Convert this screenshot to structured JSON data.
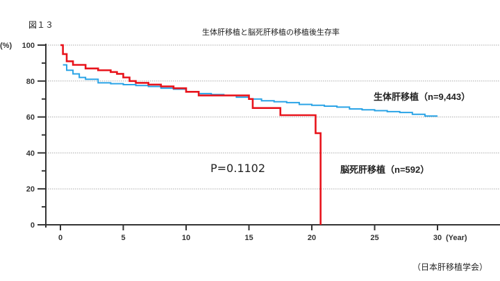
{
  "figure_label": "図１３",
  "title": "生体肝移植と脳死肝移植の移植後生存率",
  "source": "（日本肝移植学会）",
  "p_value_label": "P=0.1102",
  "y_unit_label": "(%)",
  "x_unit_label": "(Year)",
  "colors": {
    "living": "#29a3e6",
    "deceased": "#e8141c",
    "axis": "#333333",
    "grid": "#aaaaaa"
  },
  "chart_data": {
    "type": "line",
    "title": "生体肝移植と脳死肝移植の移植後生存率",
    "xlabel": "(Year)",
    "ylabel": "(%)",
    "xlim": [
      0,
      30
    ],
    "ylim": [
      0,
      100
    ],
    "x_ticks": [
      0,
      5,
      10,
      15,
      20,
      25,
      30
    ],
    "y_ticks": [
      0,
      20,
      40,
      60,
      80,
      100
    ],
    "grid": "horizontal dotted at 20,40,60,80,100",
    "annotations": [
      "P=0.1102"
    ],
    "series": [
      {
        "name": "生体肝移植（n=9,443）",
        "label": "生体肝移植",
        "n_label": "（n=9,443）",
        "color": "#29a3e6",
        "step": true,
        "x": [
          0.2,
          0.5,
          1,
          1.5,
          2,
          3,
          4,
          5,
          6,
          7,
          8,
          9,
          10,
          11,
          12,
          13,
          14,
          15,
          16,
          17,
          18,
          19,
          20,
          21,
          22,
          23,
          24,
          25,
          26,
          27,
          28,
          29,
          30
        ],
        "y": [
          89,
          86,
          84,
          82,
          81,
          79,
          78.5,
          78,
          77.5,
          77,
          76,
          75.5,
          74,
          73,
          72.5,
          72,
          71,
          70,
          69,
          68.5,
          68,
          67,
          66.5,
          66,
          65.5,
          64.5,
          64,
          63.5,
          63,
          62.5,
          61.5,
          60.5,
          60.5
        ]
      },
      {
        "name": "脳死肝移植（n=592）",
        "label": "脳死肝移植",
        "n_label": "（n=592）",
        "color": "#e8141c",
        "step": true,
        "x": [
          0,
          0.2,
          0.5,
          1,
          2,
          3,
          4,
          4.5,
          5,
          5.5,
          6,
          7,
          8,
          9,
          10,
          11,
          15,
          15.3,
          17.5,
          20.3,
          20.7
        ],
        "y": [
          100,
          95,
          91,
          89,
          87,
          86,
          85,
          84,
          82,
          80,
          79,
          78,
          77,
          76,
          74,
          72,
          70,
          65,
          61,
          51,
          0
        ]
      }
    ]
  }
}
